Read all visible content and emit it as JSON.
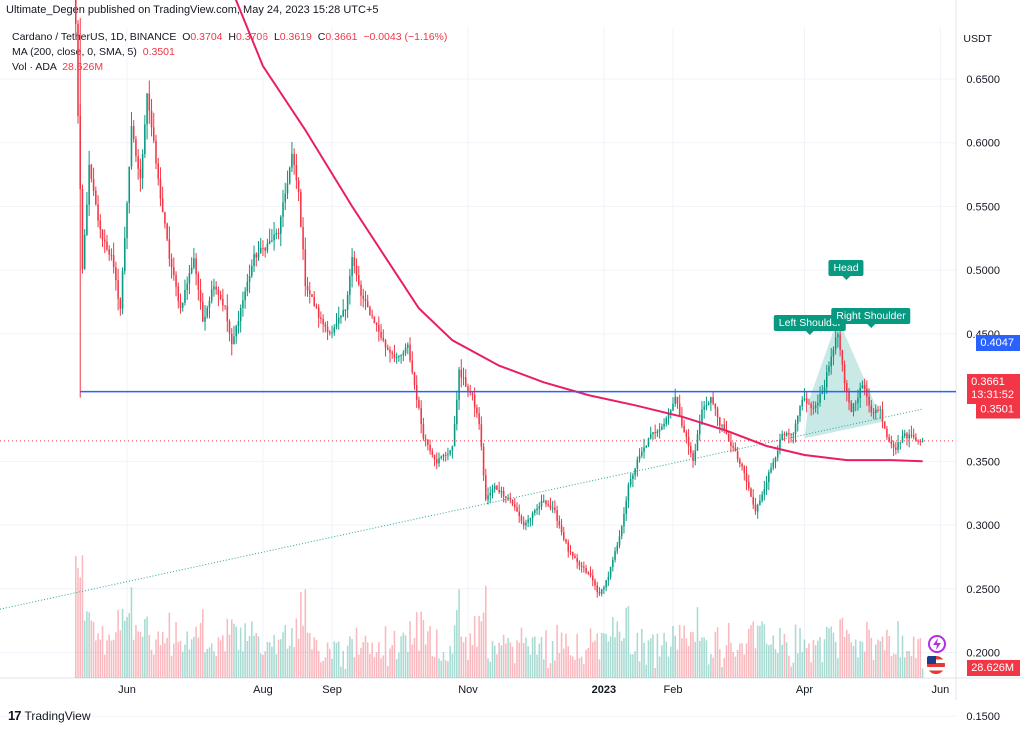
{
  "publisher": "Ultimate_Degen published on TradingView.com, May 24, 2023 15:28 UTC+5",
  "legend": {
    "symbol": "Cardano / TetherUS, 1D, BINANCE",
    "o_label": "O",
    "o_val": "0.3704",
    "h_label": "H",
    "h_val": "0.3706",
    "l_label": "L",
    "l_val": "0.3619",
    "c_label": "C",
    "c_val": "0.3661",
    "change": "−0.0043 (−1.16%)",
    "ma_label": "MA (200, close, 0, SMA, 5)",
    "ma_val": "0.3501",
    "vol_label": "Vol · ADA",
    "vol_val": "28.626M"
  },
  "currency": "USDT",
  "badges": {
    "resistance": "0.4047",
    "price": "0.3661",
    "countdown": "13:31:52",
    "ma": "0.3501",
    "volume": "28.626M"
  },
  "markers": {
    "head": "Head",
    "left_shoulder": "Left Shoulder",
    "right_shoulder": "Right Shoulder"
  },
  "brand": "TradingView",
  "colors": {
    "up": "#089981",
    "down": "#f23645",
    "ma": "#e91e63",
    "resistance": "#2962ff",
    "trendline": "#26a69a"
  },
  "chart_data": {
    "type": "candlestick",
    "title": "Cardano / TetherUS, 1D, BINANCE",
    "ylabel": "USDT",
    "ylim": [
      0.18,
      0.69
    ],
    "y_ticks": [
      "0.6500",
      "0.6000",
      "0.5500",
      "0.5000",
      "0.4500",
      "0.3500",
      "0.3000",
      "0.2500",
      "0.2000",
      "0.1500"
    ],
    "x_ticks": [
      "Jun",
      "Aug",
      "Sep",
      "Nov",
      "2023",
      "Feb",
      "Apr",
      "Jun"
    ],
    "x_tick_dates": [
      "2022-06-01",
      "2022-08-01",
      "2022-09-01",
      "2022-11-01",
      "2023-01-01",
      "2023-02-01",
      "2023-04-01",
      "2023-06-01"
    ],
    "x_range": [
      "2022-04-05",
      "2023-06-08"
    ],
    "close_path": [
      [
        "2022-05-08",
        0.77
      ],
      [
        "2022-05-10",
        0.62
      ],
      [
        "2022-05-12",
        0.5
      ],
      [
        "2022-05-15",
        0.58
      ],
      [
        "2022-05-20",
        0.53
      ],
      [
        "2022-05-25",
        0.51
      ],
      [
        "2022-05-29",
        0.47
      ],
      [
        "2022-06-03",
        0.61
      ],
      [
        "2022-06-07",
        0.57
      ],
      [
        "2022-06-10",
        0.64
      ],
      [
        "2022-06-15",
        0.57
      ],
      [
        "2022-06-20",
        0.51
      ],
      [
        "2022-06-25",
        0.47
      ],
      [
        "2022-07-01",
        0.51
      ],
      [
        "2022-07-05",
        0.46
      ],
      [
        "2022-07-10",
        0.49
      ],
      [
        "2022-07-15",
        0.47
      ],
      [
        "2022-07-18",
        0.44
      ],
      [
        "2022-07-22",
        0.47
      ],
      [
        "2022-07-28",
        0.51
      ],
      [
        "2022-08-03",
        0.52
      ],
      [
        "2022-08-08",
        0.53
      ],
      [
        "2022-08-14",
        0.59
      ],
      [
        "2022-08-17",
        0.56
      ],
      [
        "2022-08-20",
        0.49
      ],
      [
        "2022-08-27",
        0.46
      ],
      [
        "2022-09-01",
        0.45
      ],
      [
        "2022-09-07",
        0.47
      ],
      [
        "2022-09-10",
        0.51
      ],
      [
        "2022-09-14",
        0.48
      ],
      [
        "2022-09-20",
        0.46
      ],
      [
        "2022-09-25",
        0.44
      ],
      [
        "2022-10-01",
        0.43
      ],
      [
        "2022-10-05",
        0.44
      ],
      [
        "2022-10-08",
        0.41
      ],
      [
        "2022-10-12",
        0.37
      ],
      [
        "2022-10-18",
        0.35
      ],
      [
        "2022-10-25",
        0.36
      ],
      [
        "2022-10-28",
        0.42
      ],
      [
        "2022-11-03",
        0.4
      ],
      [
        "2022-11-06",
        0.38
      ],
      [
        "2022-11-09",
        0.32
      ],
      [
        "2022-11-13",
        0.33
      ],
      [
        "2022-11-20",
        0.32
      ],
      [
        "2022-11-26",
        0.3
      ],
      [
        "2022-12-01",
        0.31
      ],
      [
        "2022-12-05",
        0.32
      ],
      [
        "2022-12-10",
        0.31
      ],
      [
        "2022-12-16",
        0.28
      ],
      [
        "2022-12-20",
        0.27
      ],
      [
        "2022-12-26",
        0.26
      ],
      [
        "2022-12-30",
        0.245
      ],
      [
        "2023-01-03",
        0.26
      ],
      [
        "2023-01-08",
        0.29
      ],
      [
        "2023-01-12",
        0.33
      ],
      [
        "2023-01-16",
        0.35
      ],
      [
        "2023-01-22",
        0.37
      ],
      [
        "2023-01-28",
        0.38
      ],
      [
        "2023-02-02",
        0.4
      ],
      [
        "2023-02-05",
        0.38
      ],
      [
        "2023-02-10",
        0.35
      ],
      [
        "2023-02-14",
        0.39
      ],
      [
        "2023-02-18",
        0.4
      ],
      [
        "2023-02-22",
        0.38
      ],
      [
        "2023-02-28",
        0.36
      ],
      [
        "2023-03-05",
        0.34
      ],
      [
        "2023-03-10",
        0.31
      ],
      [
        "2023-03-12",
        0.32
      ],
      [
        "2023-03-18",
        0.35
      ],
      [
        "2023-03-22",
        0.37
      ],
      [
        "2023-03-27",
        0.37
      ],
      [
        "2023-03-31",
        0.4
      ],
      [
        "2023-04-05",
        0.39
      ],
      [
        "2023-04-10",
        0.41
      ],
      [
        "2023-04-14",
        0.44
      ],
      [
        "2023-04-16",
        0.45
      ],
      [
        "2023-04-19",
        0.41
      ],
      [
        "2023-04-22",
        0.39
      ],
      [
        "2023-04-27",
        0.41
      ],
      [
        "2023-05-01",
        0.39
      ],
      [
        "2023-05-05",
        0.39
      ],
      [
        "2023-05-08",
        0.37
      ],
      [
        "2023-05-12",
        0.36
      ],
      [
        "2023-05-15",
        0.37
      ],
      [
        "2023-05-19",
        0.37
      ],
      [
        "2023-05-24",
        0.3661
      ]
    ],
    "ma200": [
      [
        "2022-07-18",
        0.72
      ],
      [
        "2022-08-01",
        0.66
      ],
      [
        "2022-08-20",
        0.61
      ],
      [
        "2022-09-10",
        0.55
      ],
      [
        "2022-09-25",
        0.51
      ],
      [
        "2022-10-10",
        0.47
      ],
      [
        "2022-10-25",
        0.445
      ],
      [
        "2022-11-15",
        0.425
      ],
      [
        "2022-12-05",
        0.412
      ],
      [
        "2022-12-25",
        0.402
      ],
      [
        "2023-01-15",
        0.394
      ],
      [
        "2023-02-05",
        0.385
      ],
      [
        "2023-02-25",
        0.374
      ],
      [
        "2023-03-15",
        0.362
      ],
      [
        "2023-04-01",
        0.355
      ],
      [
        "2023-04-20",
        0.351
      ],
      [
        "2023-05-10",
        0.351
      ],
      [
        "2023-05-24",
        0.3501
      ]
    ],
    "resistance": {
      "value": 0.4047,
      "from": "2022-05-11",
      "to": "2023-06-08"
    },
    "trendline": {
      "from": [
        "2022-04-05",
        0.234
      ],
      "to": [
        "2023-05-24",
        0.391
      ]
    },
    "volume_label": "Vol · ADA",
    "volume_last": "28.626M"
  }
}
